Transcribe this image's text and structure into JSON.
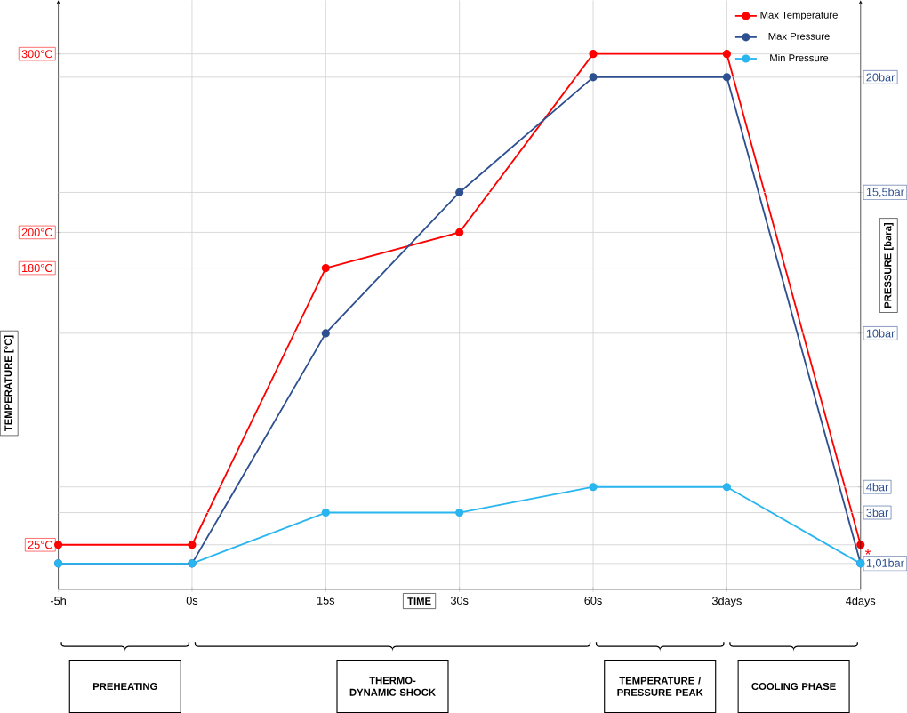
{
  "chart_data": {
    "type": "line",
    "xlabel": "TIME",
    "ylabel": "TEMPERATURE [°C]",
    "y2label": "PRESSURE [bara]",
    "categories": [
      "-5h",
      "0s",
      "15s",
      "30s",
      "60s",
      "3days",
      "4days"
    ],
    "series": [
      {
        "name": "Max Temperature",
        "color": "#ff0000",
        "values": [
          25,
          25,
          180,
          200,
          300,
          300,
          25
        ]
      },
      {
        "name": "Max Pressure",
        "color": "#2e5090",
        "axis": "y2",
        "values": [
          1.01,
          1.01,
          10,
          15.5,
          20,
          20,
          1.01
        ]
      },
      {
        "name": "Min Pressure",
        "color": "#29b5ef",
        "axis": "y2",
        "values": [
          1.01,
          1.01,
          3,
          3,
          4,
          4,
          1.01
        ]
      }
    ],
    "ylim": [
      0,
      330
    ],
    "yticks": [
      {
        "value": 25,
        "label": "25°C"
      },
      {
        "value": 180,
        "label": "180°C"
      },
      {
        "value": 200,
        "label": "200°C"
      },
      {
        "value": 300,
        "label": "300°C"
      }
    ],
    "y2lim": [
      0,
      23
    ],
    "y2ticks": [
      {
        "value": 1.01,
        "label": "1,01bar"
      },
      {
        "value": 3,
        "label": "3bar"
      },
      {
        "value": 4,
        "label": "4bar"
      },
      {
        "value": 10,
        "label": "10bar"
      },
      {
        "value": 15.5,
        "label": "15,5bar"
      },
      {
        "value": 20,
        "label": "20bar"
      }
    ],
    "annotations": [
      {
        "text": "*",
        "x": "4days",
        "y": 25
      },
      "PREHEATING",
      "THERMO-DYNAMIC SHOCK",
      "TEMPERATURE / PRESSURE PEAK",
      "COOLING PHASE"
    ],
    "grid": true,
    "legend": "top right",
    "marker": "circle",
    "line_style": "solid"
  }
}
